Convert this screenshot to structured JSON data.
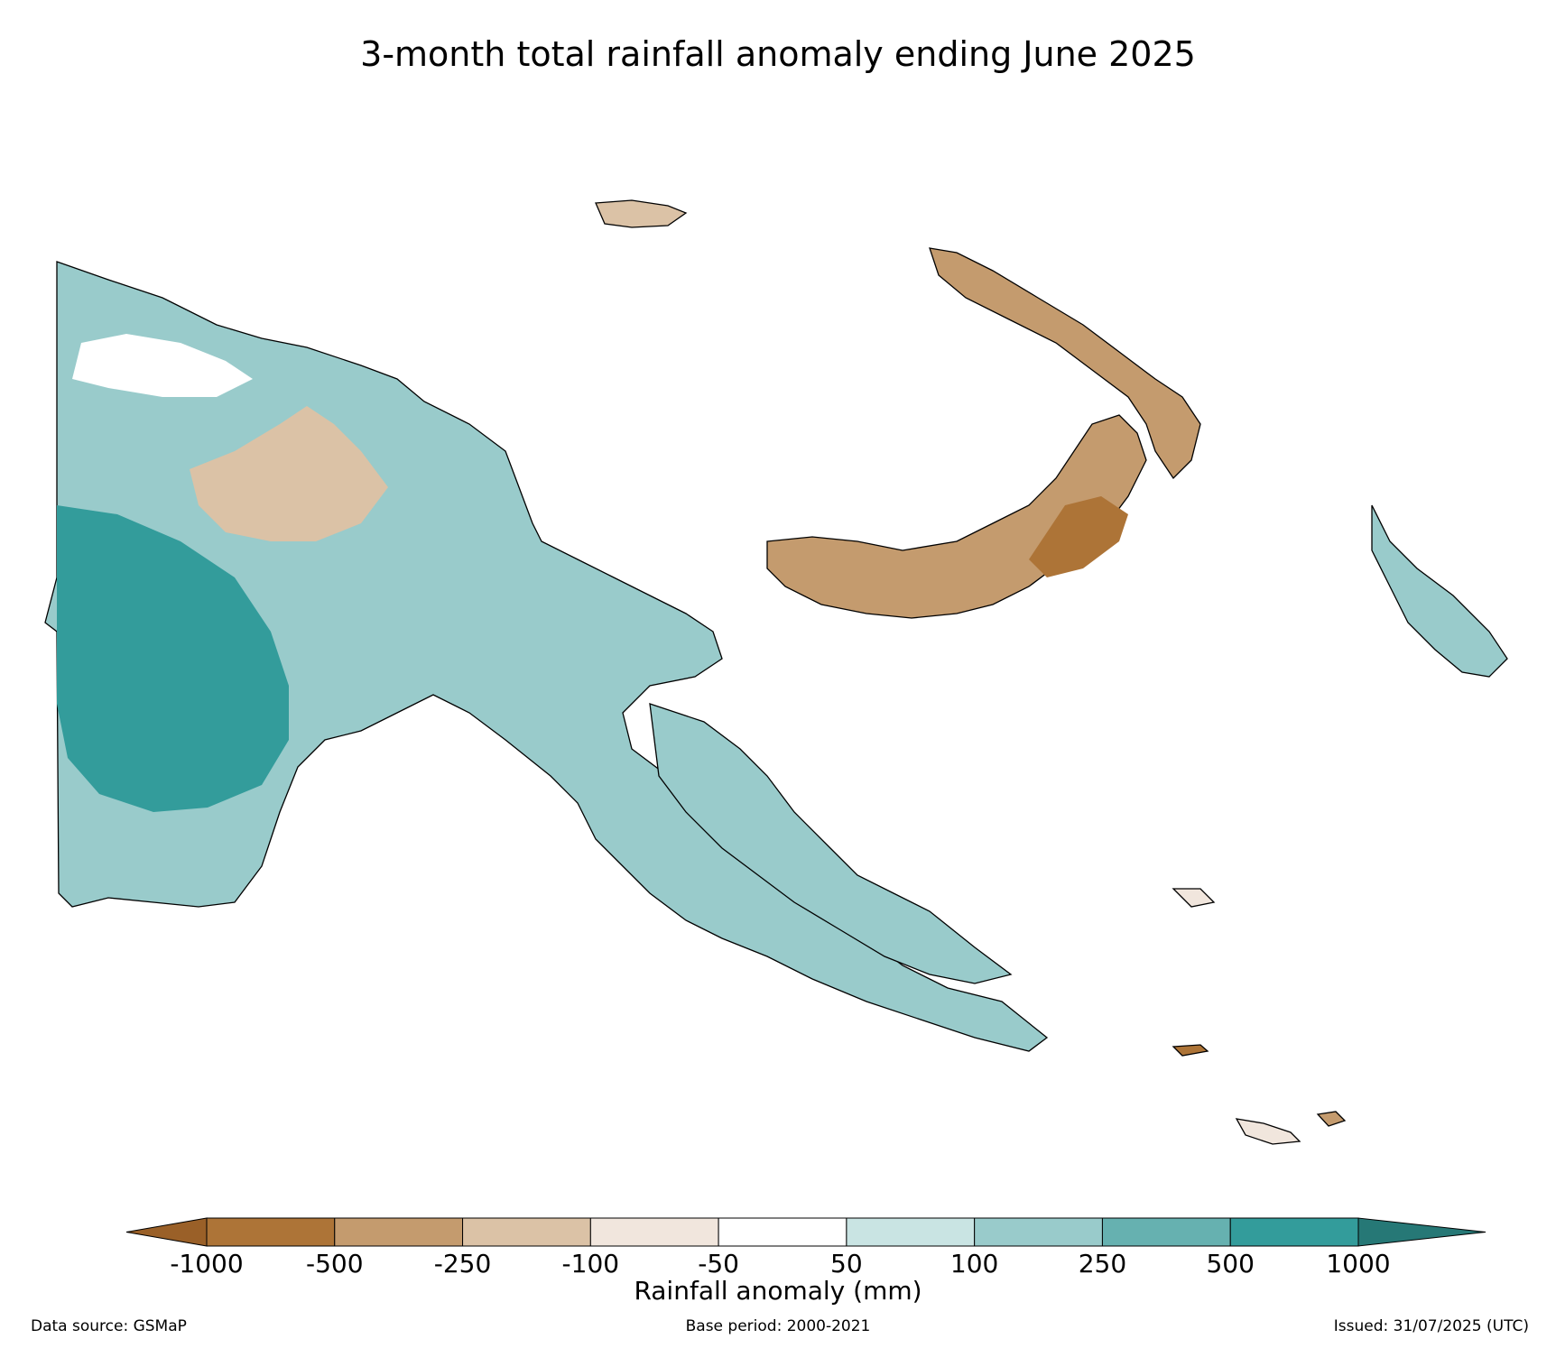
{
  "title": "3-month total rainfall anomaly ending June 2025",
  "legend": {
    "label": "Rainfall anomaly (mm)",
    "ticks": [
      "-1000",
      "-500",
      "-250",
      "-100",
      "-50",
      "50",
      "100",
      "250",
      "500",
      "1000"
    ],
    "colors": [
      "#9a6028",
      "#ad7437",
      "#c49b6e",
      "#dbc2a6",
      "#f1e6dd",
      "#ffffff",
      "#c9e4e3",
      "#99cbcb",
      "#66b1b0",
      "#339c9b",
      "#267876"
    ]
  },
  "footer": {
    "source": "Data source: GSMaP",
    "base_period": "Base period: 2000-2021",
    "issued": "Issued: 31/07/2025 (UTC)"
  },
  "chart_data": {
    "type": "heatmap",
    "title": "3-month total rainfall anomaly ending June 2025",
    "colorbar_label": "Rainfall anomaly (mm)",
    "levels": [
      -1000,
      -500,
      -250,
      -100,
      -50,
      50,
      100,
      250,
      500,
      1000
    ],
    "extend": "both",
    "legend_position": "bottom"
  }
}
